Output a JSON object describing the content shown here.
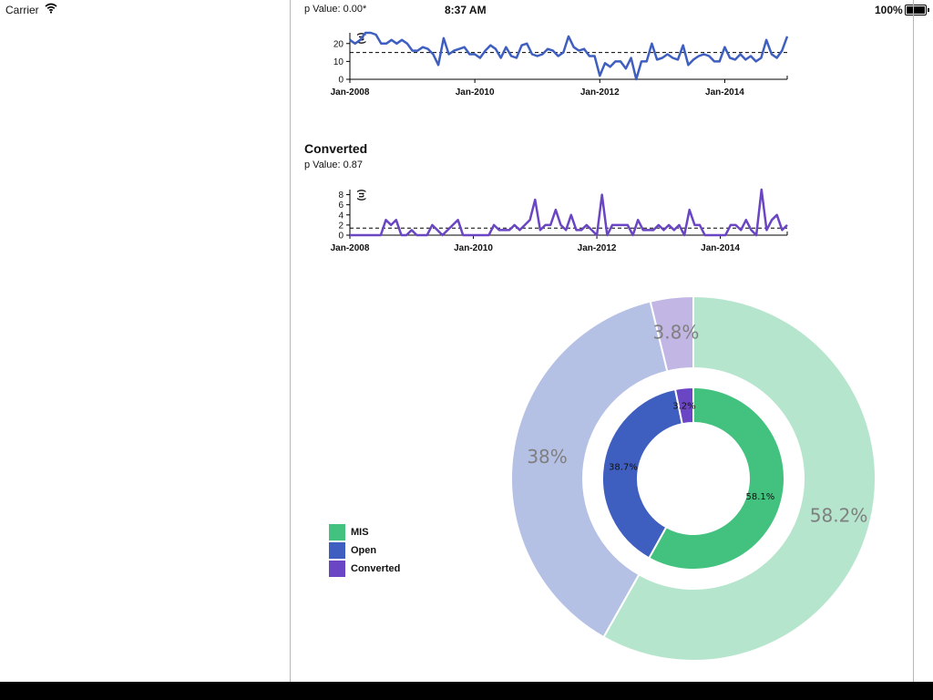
{
  "status_bar": {
    "carrier": "Carrier",
    "time": "8:37 AM",
    "battery": "100%"
  },
  "colors": {
    "mis": "#43c17e",
    "open": "#3f5fc0",
    "converted": "#6a45c4",
    "mis_light": "#b6e5cd",
    "open_light": "#b5c0e5",
    "converted_light": "#c2b6e5"
  },
  "chart_data": [
    {
      "type": "line",
      "title": "",
      "p_value_label": "p Value: 0.00*",
      "ylabel": "(n)",
      "ylim": [
        0,
        26
      ],
      "yticks": [
        0,
        10,
        20
      ],
      "xlim": [
        "2008-01",
        "2014-12"
      ],
      "xticks": [
        "Jan-2008",
        "Jan-2010",
        "Jan-2012",
        "Jan-2014"
      ],
      "mean_line": 15,
      "color": "#3f5fc0",
      "values": [
        22,
        20,
        22,
        26,
        26,
        25,
        20,
        20,
        22,
        20,
        22,
        20,
        16,
        16,
        18,
        17,
        14,
        8,
        23,
        14,
        16,
        17,
        18,
        14,
        14,
        12,
        16,
        19,
        17,
        12,
        18,
        13,
        12,
        19,
        20,
        14,
        13,
        14,
        17,
        16,
        13,
        15,
        24,
        18,
        16,
        17,
        13,
        13,
        2,
        9,
        7,
        10,
        10,
        6,
        12,
        0,
        10,
        10,
        20,
        11,
        12,
        14,
        12,
        11,
        19,
        8,
        11,
        13,
        14,
        13,
        10,
        10,
        18,
        12,
        11,
        14,
        11,
        13,
        10,
        12,
        22,
        14,
        12,
        16,
        24
      ]
    },
    {
      "type": "line",
      "title": "Converted",
      "p_value_label": "p Value: 0.87",
      "ylabel": "(n)",
      "ylim": [
        0,
        9
      ],
      "yticks": [
        0,
        2,
        4,
        6,
        8
      ],
      "xlim": [
        "2008-01",
        "2014-12"
      ],
      "xticks": [
        "Jan-2008",
        "Jan-2010",
        "Jan-2012",
        "Jan-2014"
      ],
      "mean_line": 1.4,
      "color": "#6a45c4",
      "values": [
        0,
        0,
        0,
        0,
        0,
        0,
        0,
        3,
        2,
        3,
        0,
        0,
        1,
        0,
        0,
        0,
        2,
        1,
        0,
        1,
        2,
        3,
        0,
        0,
        0,
        0,
        0,
        0,
        2,
        1,
        1,
        1,
        2,
        1,
        2,
        3,
        7,
        1,
        2,
        2,
        5,
        2,
        1,
        4,
        1,
        1,
        2,
        1,
        0,
        8,
        0,
        2,
        2,
        2,
        2,
        0,
        3,
        1,
        1,
        1,
        2,
        1,
        2,
        1,
        2,
        0,
        5,
        2,
        2,
        0,
        0,
        0,
        0,
        0,
        2,
        2,
        1,
        3,
        1,
        0,
        9,
        1,
        3,
        4,
        1,
        2
      ]
    },
    {
      "type": "pie",
      "subtype": "nested-donut",
      "categories": [
        "MIS",
        "Open",
        "Converted"
      ],
      "outer": {
        "values": [
          58.2,
          38,
          3.8
        ],
        "labels": [
          "58.2%",
          "38%",
          "3.8%"
        ]
      },
      "inner": {
        "values": [
          58.1,
          38.7,
          3.2
        ],
        "labels": [
          "58.1%",
          "38.7%",
          "3.2%"
        ]
      },
      "legend": [
        "MIS",
        "Open",
        "Converted"
      ],
      "legend_position": "bottom-left"
    }
  ]
}
